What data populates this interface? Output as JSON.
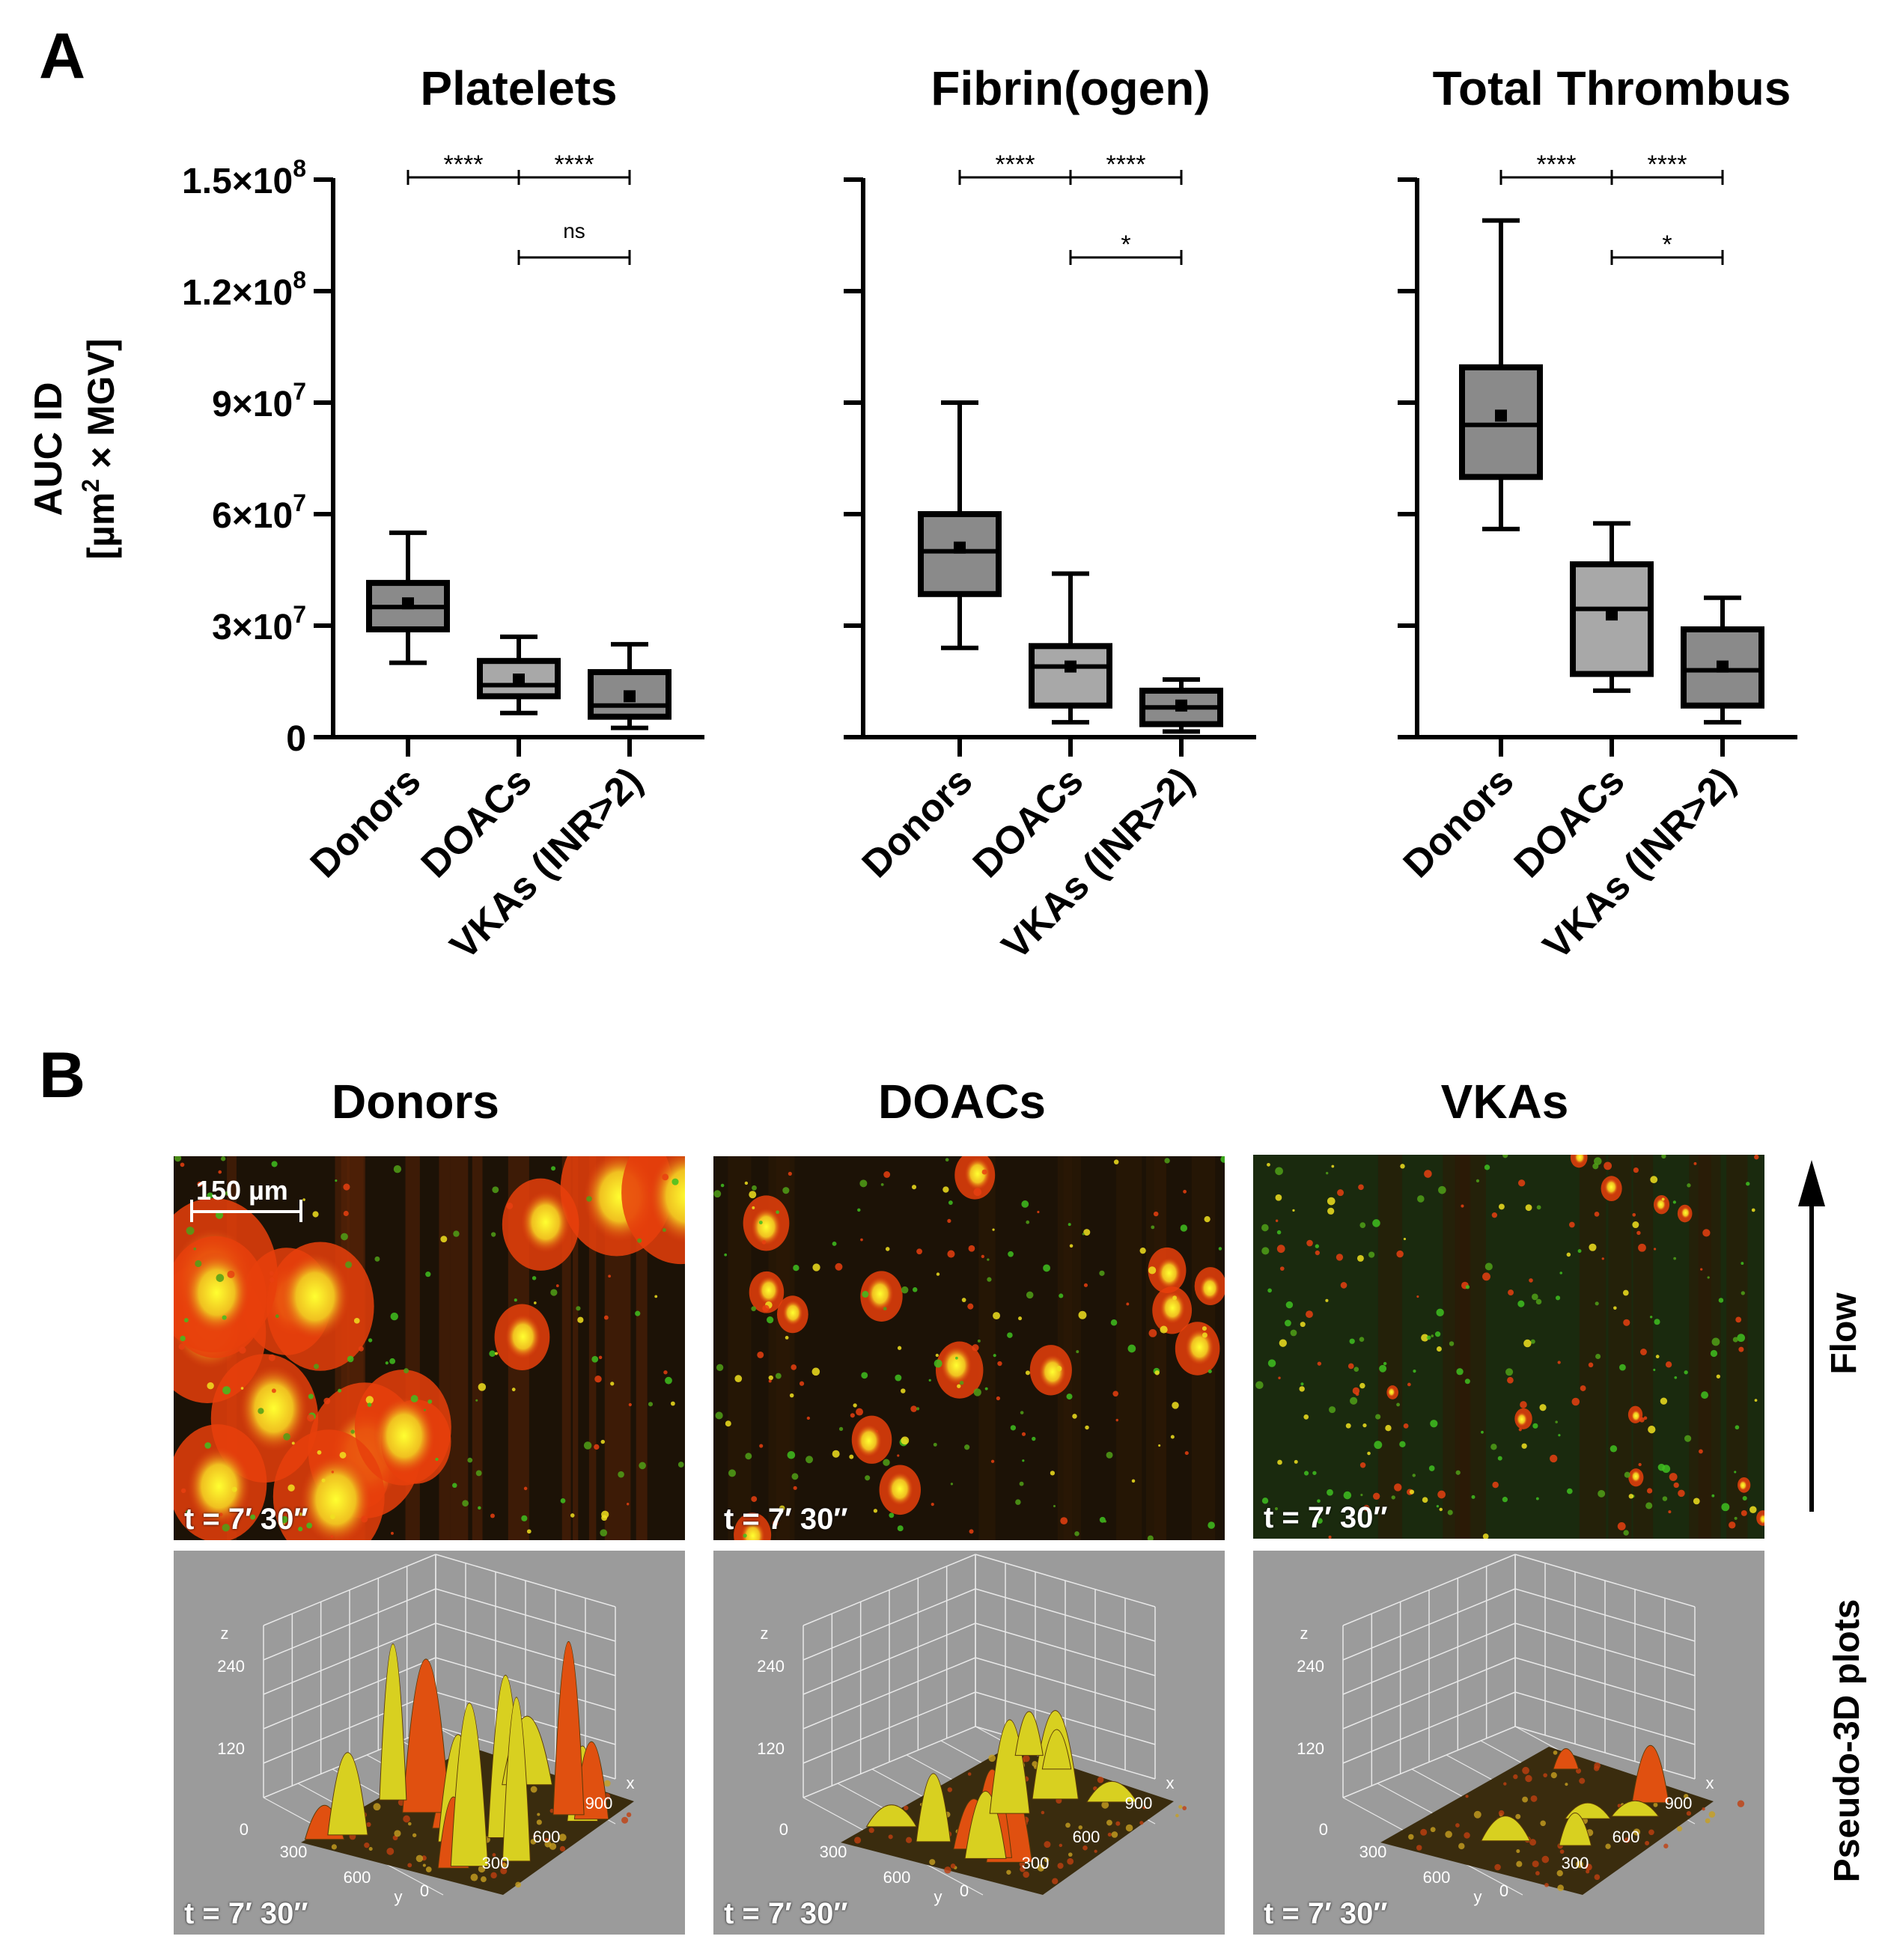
{
  "panel_a": {
    "label": "A",
    "y_axis_label_line1": "AUC ID",
    "y_axis_label_line2_prefix": "[µm",
    "y_axis_label_line2_sup": "2",
    "y_axis_label_line2_suffix": " × MGV]",
    "y_ticks": [
      {
        "value": 0,
        "mantissa": "0",
        "exp": ""
      },
      {
        "value": 30000000,
        "mantissa": "3×10",
        "exp": "7"
      },
      {
        "value": 60000000,
        "mantissa": "6×10",
        "exp": "7"
      },
      {
        "value": 90000000,
        "mantissa": "9×10",
        "exp": "7"
      },
      {
        "value": 120000000,
        "mantissa": "1.2×10",
        "exp": "8"
      },
      {
        "value": 150000000,
        "mantissa": "1.5×10",
        "exp": "8"
      }
    ]
  },
  "chart_data": [
    {
      "type": "box",
      "title": "Platelets",
      "categories": [
        "Donors",
        "DOACs",
        "VKAs (INR>2)"
      ],
      "ylim": [
        0,
        150000000
      ],
      "boxes": [
        {
          "min": 20000000,
          "q1": 29000000,
          "median": 35000000,
          "q3": 41500000,
          "max": 55000000,
          "mean": 36000000,
          "fill": "#8a8a8a"
        },
        {
          "min": 6500000,
          "q1": 11000000,
          "median": 14000000,
          "q3": 20500000,
          "max": 27000000,
          "mean": 15500000,
          "fill": "#a8a8a8"
        },
        {
          "min": 2500000,
          "q1": 5500000,
          "median": 8500000,
          "q3": 17500000,
          "max": 25000000,
          "mean": 11000000,
          "fill": "#8a8a8a"
        }
      ],
      "comparisons": [
        {
          "from": 0,
          "to": 1,
          "label": "****",
          "level": 0
        },
        {
          "from": 1,
          "to": 2,
          "label": "****",
          "level": 0
        },
        {
          "from": 1,
          "to": 2,
          "label": "ns",
          "level": 1
        }
      ]
    },
    {
      "type": "box",
      "title": "Fibrin(ogen)",
      "categories": [
        "Donors",
        "DOACs",
        "VKAs (INR>2)"
      ],
      "ylim": [
        0,
        150000000
      ],
      "boxes": [
        {
          "min": 24000000,
          "q1": 38500000,
          "median": 50000000,
          "q3": 60000000,
          "max": 90000000,
          "mean": 51000000,
          "fill": "#8a8a8a"
        },
        {
          "min": 4000000,
          "q1": 8500000,
          "median": 19000000,
          "q3": 24500000,
          "max": 44000000,
          "mean": 19000000,
          "fill": "#a8a8a8"
        },
        {
          "min": 1500000,
          "q1": 3500000,
          "median": 8000000,
          "q3": 12500000,
          "max": 15500000,
          "mean": 8500000,
          "fill": "#8a8a8a"
        }
      ],
      "comparisons": [
        {
          "from": 0,
          "to": 1,
          "label": "****",
          "level": 0
        },
        {
          "from": 1,
          "to": 2,
          "label": "****",
          "level": 0
        },
        {
          "from": 1,
          "to": 2,
          "label": "*",
          "level": 1
        }
      ]
    },
    {
      "type": "box",
      "title": "Total Thrombus",
      "categories": [
        "Donors",
        "DOACs",
        "VKAs (INR>2)"
      ],
      "ylim": [
        0,
        150000000
      ],
      "boxes": [
        {
          "min": 56000000,
          "q1": 70000000,
          "median": 84000000,
          "q3": 99500000,
          "max": 139000000,
          "mean": 86500000,
          "fill": "#8a8a8a"
        },
        {
          "min": 12500000,
          "q1": 17000000,
          "median": 34500000,
          "q3": 46500000,
          "max": 57500000,
          "mean": 33000000,
          "fill": "#a8a8a8"
        },
        {
          "min": 4000000,
          "q1": 8500000,
          "median": 18000000,
          "q3": 29000000,
          "max": 37500000,
          "mean": 19000000,
          "fill": "#8a8a8a"
        }
      ],
      "comparisons": [
        {
          "from": 0,
          "to": 1,
          "label": "****",
          "level": 0
        },
        {
          "from": 1,
          "to": 2,
          "label": "****",
          "level": 0
        },
        {
          "from": 1,
          "to": 2,
          "label": "*",
          "level": 1
        }
      ]
    }
  ],
  "panel_b": {
    "label": "B",
    "columns": [
      {
        "title": "Donors",
        "time": "t = 7′ 30″"
      },
      {
        "title": "DOACs",
        "time": "t = 7′ 30″"
      },
      {
        "title": "VKAs",
        "time": "t = 7′ 30″"
      }
    ],
    "scale_bar": "150 µm",
    "flow_label": "Flow",
    "pseudo_label": "Pseudo-3D plots",
    "pseudo_axes": {
      "z": "z",
      "x": "x",
      "y": "y",
      "z_ticks": [
        "240",
        "120",
        "0"
      ],
      "x_ticks": [
        "900",
        "600",
        "300",
        "0"
      ],
      "y_ticks": [
        "300",
        "600"
      ]
    }
  }
}
